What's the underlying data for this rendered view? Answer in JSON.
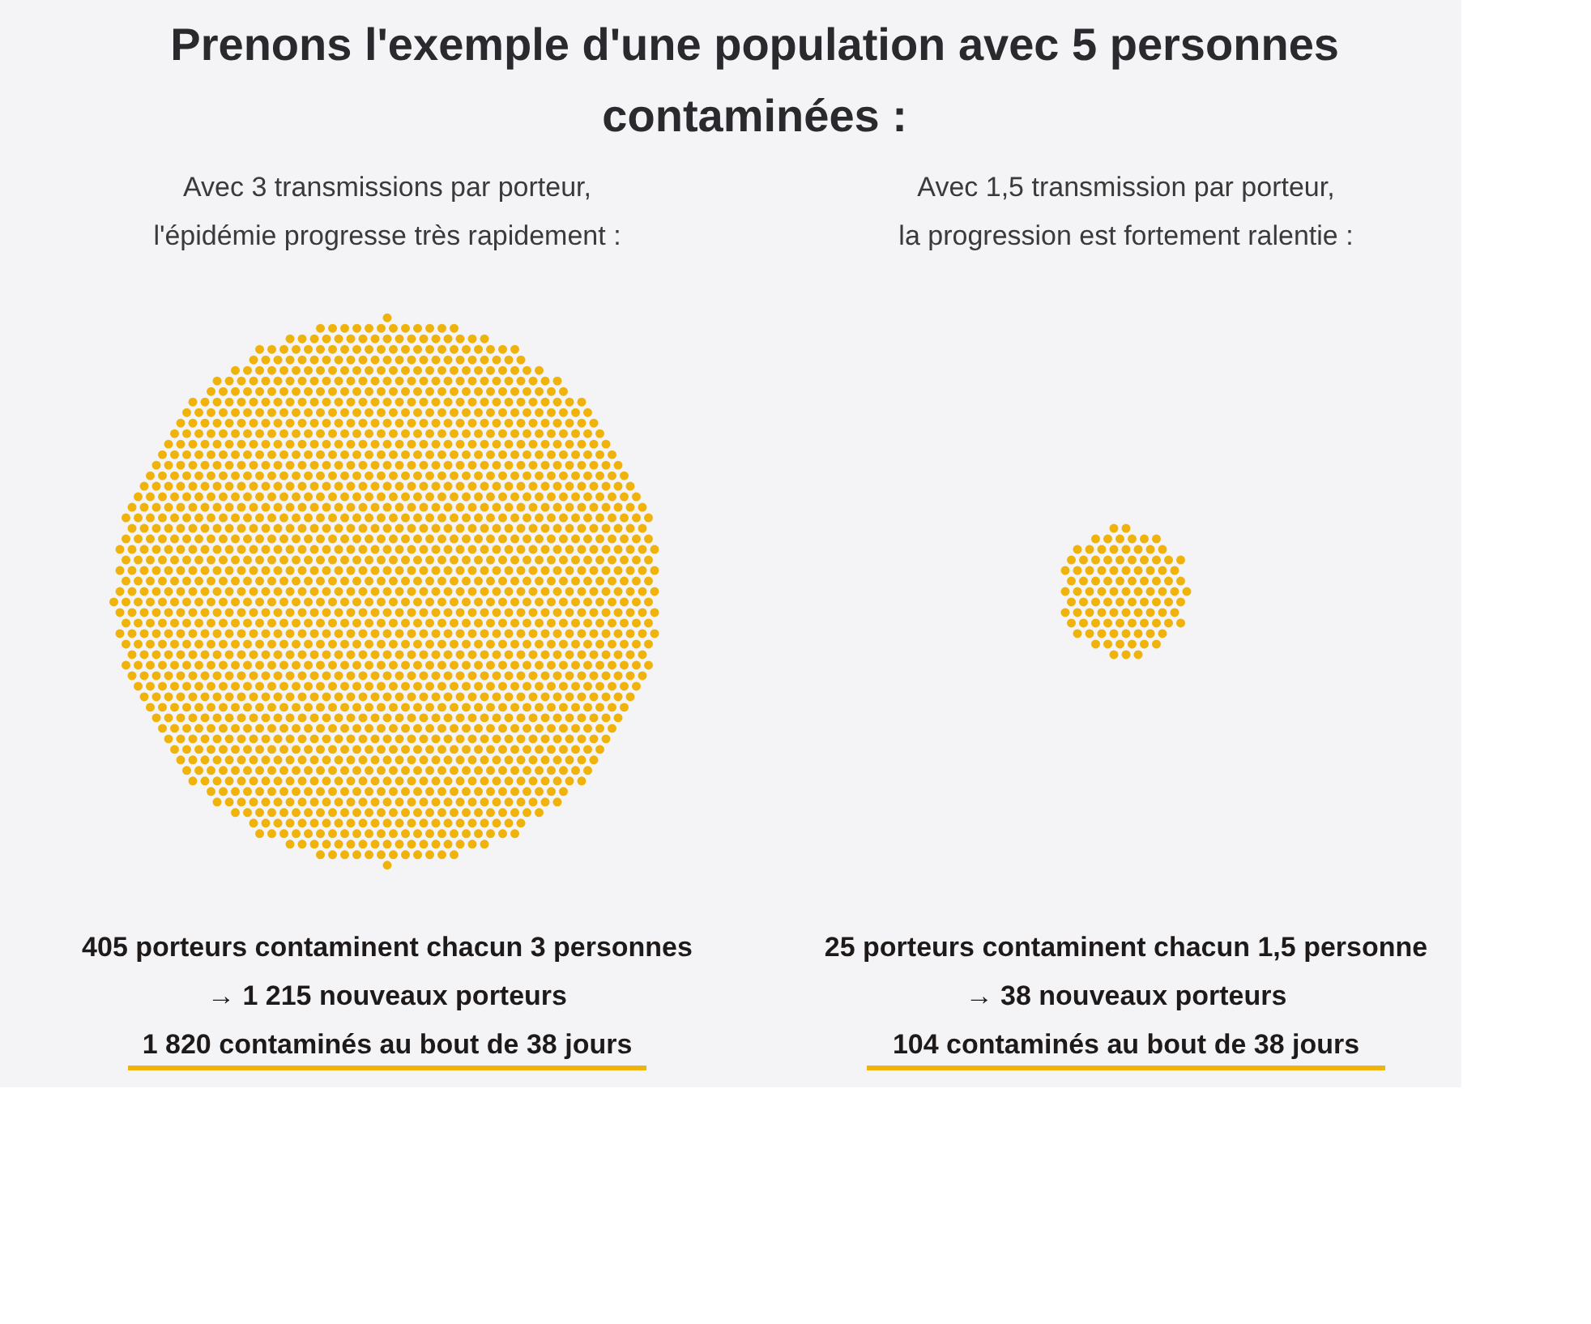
{
  "chart_data": [
    {
      "type": "other",
      "title": "Prenons l'exemple d'une population avec 5 personnes contaminées :",
      "subtitle": "Avec 3 transmissions par porteur,\nl'épidémie progresse très rapidement :",
      "values": [
        1820
      ],
      "colors": [
        "#efb30c"
      ],
      "annotations": [
        "405 porteurs contaminent chacun 3 personnes",
        "→ 1 215 nouveaux porteurs"
      ],
      "value_labels": [
        "1 820 contaminés au bout de 38 jours"
      ]
    },
    {
      "type": "other",
      "subtitle": "Avec 1,5 transmission par porteur,\nla progression est fortement ralentie :",
      "values": [
        104
      ],
      "colors": [
        "#efb30c"
      ],
      "annotations": [
        "25 porteurs contaminent chacun 1,5 personne",
        "→ 38 nouveaux porteurs"
      ],
      "value_labels": [
        "104 contaminés au bout de 38 jours"
      ]
    }
  ]
}
